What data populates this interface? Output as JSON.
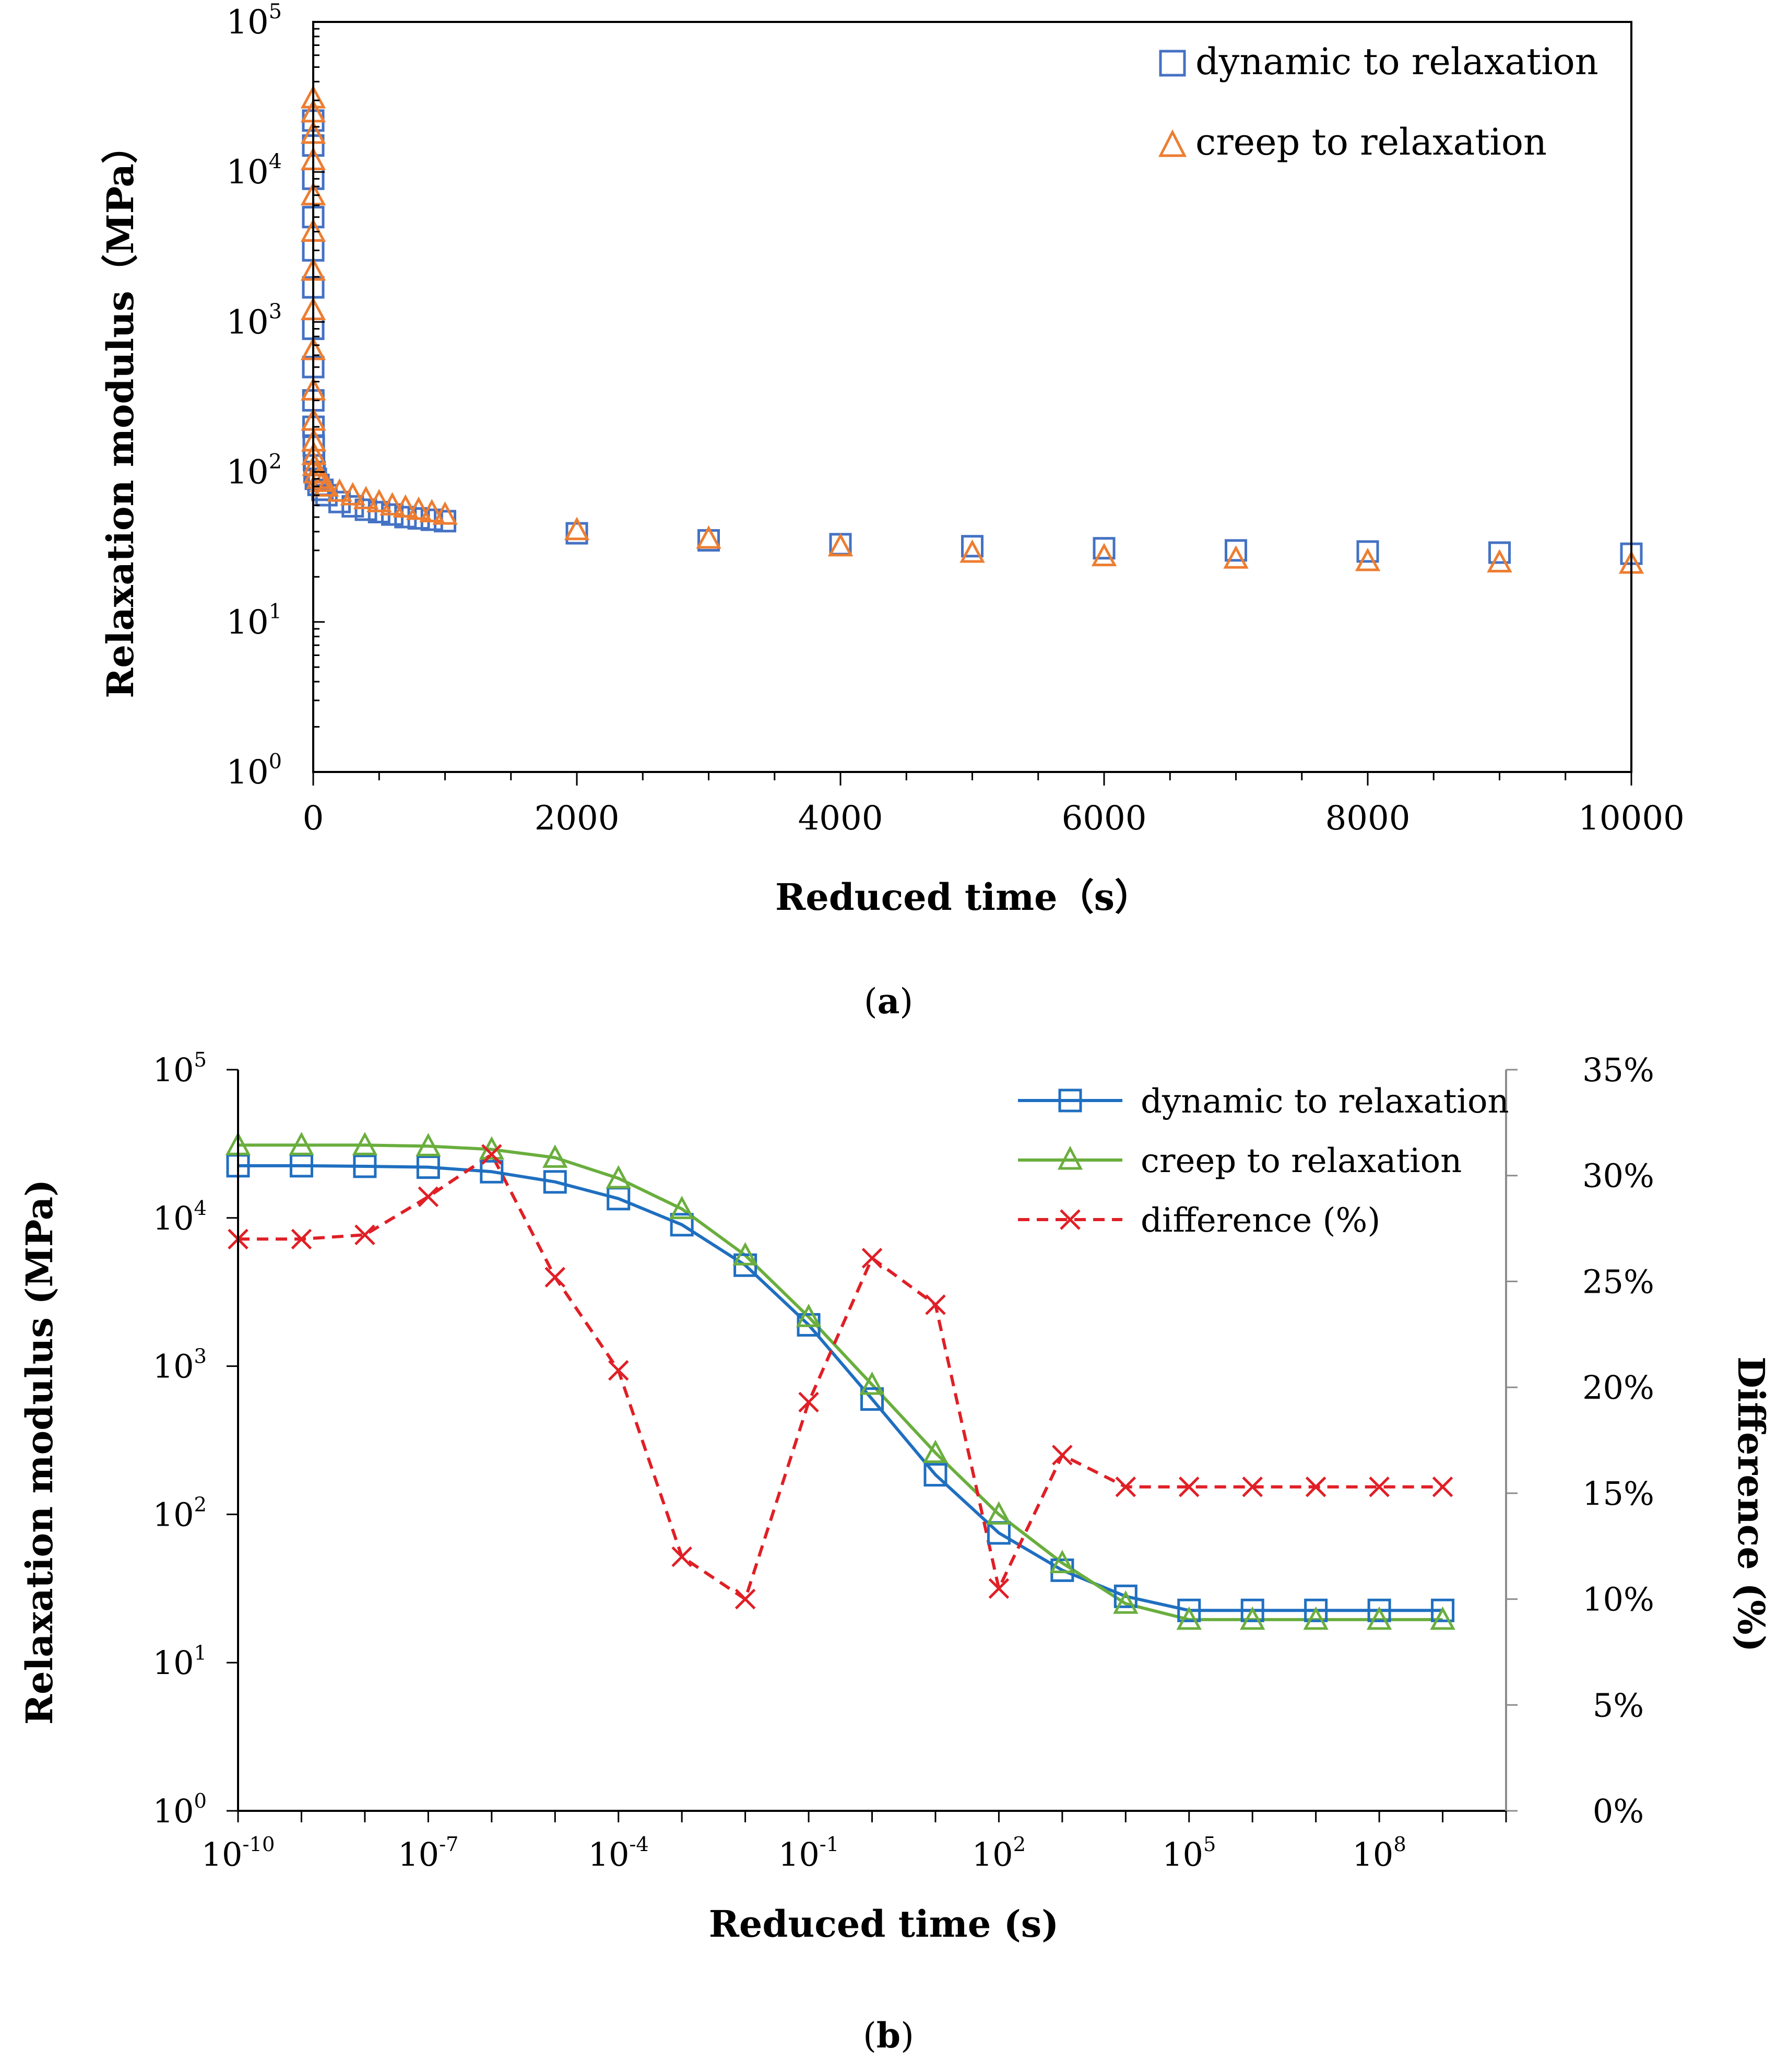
{
  "colors": {
    "dynamic_a": "#4472C4",
    "creep_a": "#ED7D31",
    "dynamic_b": "#1F6FC0",
    "creep_b": "#6AAE3E",
    "difference": "#E01F26",
    "axis": "#000000",
    "right_axis": "#8C8C8C"
  },
  "chart_data": [
    {
      "id": "a",
      "type": "scatter",
      "caption": "(a)",
      "title": "",
      "xlabel": "Reduced time（s）",
      "ylabel": "Relaxation modulus（MPa）",
      "xscale": "linear",
      "yscale": "log",
      "xlim": [
        0,
        10000
      ],
      "ylim": [
        1,
        100000
      ],
      "xticks": [
        0,
        2000,
        4000,
        6000,
        8000,
        10000
      ],
      "xtick_labels": [
        "0",
        "2000",
        "4000",
        "6000",
        "8000",
        "10000"
      ],
      "yticks": [
        1,
        10,
        100,
        1000,
        10000,
        100000
      ],
      "ytick_labels": [
        {
          "base": "10",
          "exp": "0"
        },
        {
          "base": "10",
          "exp": "1"
        },
        {
          "base": "10",
          "exp": "2"
        },
        {
          "base": "10",
          "exp": "3"
        },
        {
          "base": "10",
          "exp": "4"
        },
        {
          "base": "10",
          "exp": "5"
        }
      ],
      "grid": false,
      "legend_position": "top-right",
      "series": [
        {
          "name": "dynamic to relaxation",
          "marker": "square",
          "color_key": "dynamic_a",
          "x": [
            0,
            0,
            0,
            0,
            0,
            0,
            0,
            0,
            1,
            2,
            4,
            6,
            10,
            20,
            40,
            70,
            100,
            200,
            300,
            400,
            500,
            600,
            700,
            800,
            900,
            1000,
            2000,
            3000,
            4000,
            5000,
            6000,
            7000,
            8000,
            9000,
            10000
          ],
          "y": [
            22000,
            15000,
            9000,
            5000,
            3000,
            1700,
            900,
            500,
            300,
            200,
            150,
            120,
            100,
            90,
            82,
            76,
            70,
            63,
            59,
            56,
            54,
            52,
            50,
            49,
            48,
            47,
            39,
            35,
            33,
            32,
            31,
            30,
            29.5,
            29,
            28.5
          ]
        },
        {
          "name": "creep to relaxation",
          "marker": "triangle",
          "color_key": "creep_a",
          "x": [
            0,
            0,
            0,
            0,
            0,
            0,
            0,
            0,
            0,
            1,
            2,
            4,
            6,
            10,
            20,
            40,
            70,
            100,
            200,
            300,
            400,
            500,
            600,
            700,
            800,
            900,
            1000,
            2000,
            3000,
            4000,
            5000,
            6000,
            7000,
            8000,
            9000,
            10000
          ],
          "y": [
            31000,
            25000,
            18000,
            12000,
            7000,
            4000,
            2200,
            1200,
            650,
            350,
            220,
            160,
            130,
            110,
            98,
            90,
            86,
            80,
            74,
            70,
            66,
            63,
            60,
            58,
            56,
            54,
            52,
            41,
            36,
            32,
            29,
            27.5,
            26.5,
            25.5,
            25,
            24.5
          ]
        }
      ]
    },
    {
      "id": "b",
      "type": "line",
      "caption": "(b)",
      "title": "",
      "xlabel": "Reduced time (s)",
      "ylabel": "Relaxation modulus (MPa)",
      "y2label": "Difference (%)",
      "xscale": "log",
      "yscale": "log",
      "xlim": [
        1e-10,
        10000000000.0
      ],
      "ylim": [
        1,
        100000
      ],
      "y2lim": [
        0,
        35
      ],
      "xticks": [
        1e-10,
        1e-07,
        0.0001,
        0.1,
        100,
        100000,
        100000000
      ],
      "xtick_labels": [
        {
          "base": "10",
          "exp": "-10"
        },
        {
          "base": "10",
          "exp": "-7"
        },
        {
          "base": "10",
          "exp": "-4"
        },
        {
          "base": "10",
          "exp": "-1"
        },
        {
          "base": "10",
          "exp": "2"
        },
        {
          "base": "10",
          "exp": "5"
        },
        {
          "base": "10",
          "exp": "8"
        }
      ],
      "yticks": [
        1,
        10,
        100,
        1000,
        10000,
        100000
      ],
      "ytick_labels": [
        {
          "base": "10",
          "exp": "0"
        },
        {
          "base": "10",
          "exp": "1"
        },
        {
          "base": "10",
          "exp": "2"
        },
        {
          "base": "10",
          "exp": "3"
        },
        {
          "base": "10",
          "exp": "4"
        },
        {
          "base": "10",
          "exp": "5"
        }
      ],
      "y2ticks": [
        0,
        5,
        10,
        15,
        20,
        25,
        30,
        35
      ],
      "y2tick_labels": [
        "0%",
        "5%",
        "10%",
        "15%",
        "20%",
        "25%",
        "30%",
        "35%"
      ],
      "grid": false,
      "legend_position": "top-right",
      "series": [
        {
          "name": "dynamic to relaxation",
          "marker": "square",
          "line": "solid",
          "axis": "left",
          "color_key": "dynamic_b",
          "x": [
            1e-10,
            1e-09,
            1e-08,
            1e-07,
            1e-06,
            1e-05,
            0.0001,
            0.001,
            0.01,
            0.1,
            1,
            10,
            100,
            1000,
            10000,
            100000,
            1000000,
            10000000,
            100000000,
            1000000000
          ],
          "y": [
            22500,
            22500,
            22300,
            22000,
            20500,
            17500,
            13500,
            9000,
            4800,
            1900,
            600,
            185,
            75,
            42,
            28,
            22.5,
            22.5,
            22.5,
            22.5,
            22.5
          ]
        },
        {
          "name": "creep to relaxation",
          "marker": "triangle",
          "line": "solid",
          "axis": "left",
          "color_key": "creep_b",
          "x": [
            1e-10,
            1e-09,
            1e-08,
            1e-07,
            1e-06,
            1e-05,
            0.0001,
            0.001,
            0.01,
            0.1,
            1,
            10,
            100,
            1000,
            10000,
            100000,
            1000000,
            10000000,
            100000000,
            1000000000
          ],
          "y": [
            31000,
            31000,
            31000,
            30500,
            29000,
            25500,
            18500,
            11500,
            5600,
            2150,
            750,
            260,
            100,
            47,
            25,
            19.5,
            19.5,
            19.5,
            19.5,
            19.5
          ]
        },
        {
          "name": "difference (%)",
          "marker": "cross",
          "line": "dashed",
          "axis": "right",
          "color_key": "difference",
          "x": [
            1e-10,
            1e-09,
            1e-08,
            1e-07,
            1e-06,
            1e-05,
            0.0001,
            0.001,
            0.01,
            0.1,
            1,
            10,
            100,
            1000,
            10000,
            100000,
            1000000,
            10000000,
            100000000,
            1000000000
          ],
          "y": [
            27.0,
            27.0,
            27.2,
            29.0,
            31.0,
            25.2,
            20.8,
            12.0,
            10.0,
            19.3,
            26.1,
            23.9,
            10.5,
            16.8,
            15.3,
            15.3,
            15.3,
            15.3,
            15.3,
            15.3
          ]
        }
      ]
    }
  ]
}
